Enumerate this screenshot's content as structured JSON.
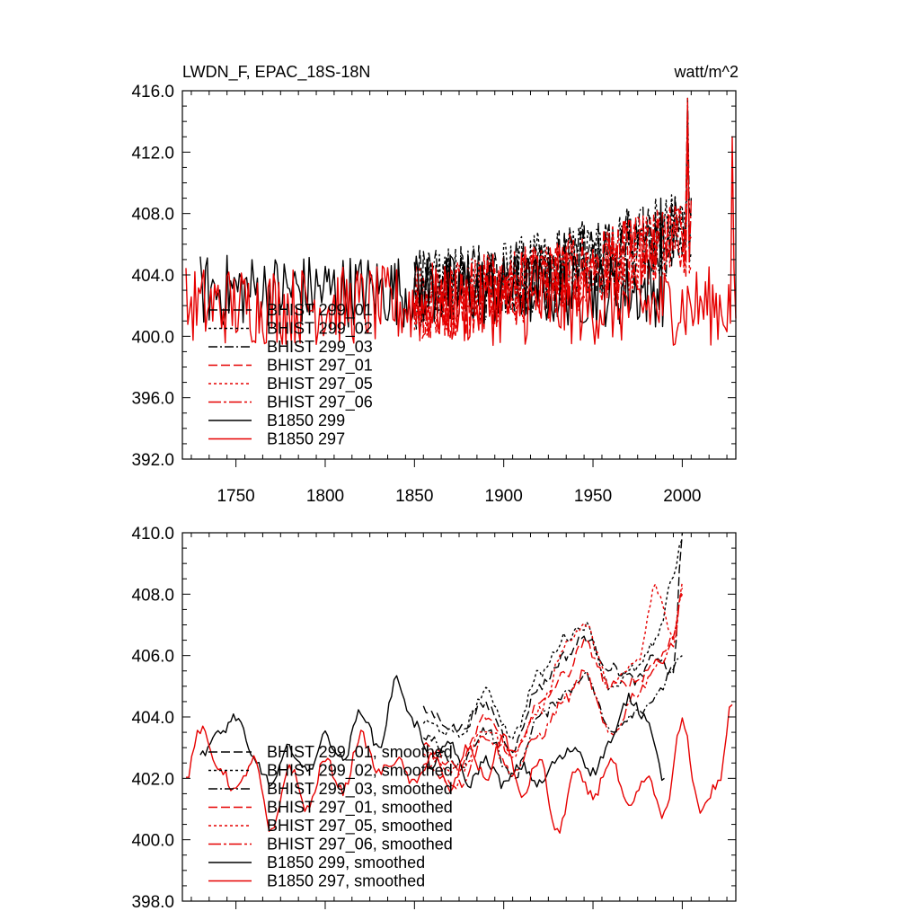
{
  "chart_data": [
    {
      "type": "line",
      "title": "LWDN_F, EPAC_18S-18N",
      "units": "watt/m^2",
      "xlabel": "",
      "ylabel": "",
      "xlim": [
        1720,
        2030
      ],
      "ylim": [
        392.0,
        416.0
      ],
      "x_ticks": [
        1750,
        1800,
        1850,
        1900,
        1950,
        2000
      ],
      "y_ticks": [
        "392.0",
        "396.0",
        "400.0",
        "404.0",
        "408.0",
        "412.0",
        "416.0"
      ],
      "legend": [
        "BHIST 299_01",
        "BHIST 299_02",
        "BHIST 299_03",
        "BHIST 297_01",
        "BHIST 297_05",
        "BHIST 297_06",
        "B1850 299",
        "B1850 297"
      ],
      "legend_position": "lower-left",
      "series": [
        {
          "name": "BHIST 299_01",
          "color": "#000000",
          "style": "dash",
          "x_range": [
            1850,
            2005
          ],
          "mean": 403.0,
          "trend": 4.0,
          "amplitude": 2.6,
          "peak": 415.0
        },
        {
          "name": "BHIST 299_02",
          "color": "#000000",
          "style": "dot",
          "x_range": [
            1850,
            2005
          ],
          "mean": 403.0,
          "trend": 4.2,
          "amplitude": 2.6,
          "peak": 414.5
        },
        {
          "name": "BHIST 299_03",
          "color": "#000000",
          "style": "dashdot",
          "x_range": [
            1850,
            2005
          ],
          "mean": 403.0,
          "trend": 4.0,
          "amplitude": 2.6,
          "peak": 415.5
        },
        {
          "name": "BHIST 297_01",
          "color": "#e60000",
          "style": "dash",
          "x_range": [
            1850,
            2005
          ],
          "mean": 402.3,
          "trend": 4.2,
          "amplitude": 2.6,
          "peak": 415.0
        },
        {
          "name": "BHIST 297_05",
          "color": "#e60000",
          "style": "dot",
          "x_range": [
            1850,
            2005
          ],
          "mean": 402.3,
          "trend": 4.4,
          "amplitude": 2.6,
          "peak": 415.5
        },
        {
          "name": "BHIST 297_06",
          "color": "#e60000",
          "style": "dashdot2",
          "x_range": [
            1850,
            2005
          ],
          "mean": 402.3,
          "trend": 4.1,
          "amplitude": 2.6,
          "peak": 414.0
        },
        {
          "name": "B1850 299",
          "color": "#000000",
          "style": "solid",
          "x_range": [
            1730,
            1990
          ],
          "mean": 403.0,
          "trend": 0.0,
          "amplitude": 2.4,
          "peak": 409.0
        },
        {
          "name": "B1850 297",
          "color": "#e60000",
          "style": "solid",
          "x_range": [
            1722,
            2030
          ],
          "mean": 402.0,
          "trend": 0.0,
          "amplitude": 2.6,
          "peak": 413.0
        }
      ]
    },
    {
      "type": "line",
      "title": "",
      "xlabel": "",
      "ylabel": "",
      "xlim": [
        1720,
        2030
      ],
      "ylim": [
        398.0,
        410.0
      ],
      "y_ticks": [
        "398.0",
        "400.0",
        "402.0",
        "404.0",
        "406.0",
        "408.0",
        "410.0"
      ],
      "legend": [
        "BHIST 299_01, smoothed",
        "BHIST 299_02, smoothed",
        "BHIST 299_03, smoothed",
        "BHIST 297_01, smoothed",
        "BHIST 297_05, smoothed",
        "BHIST 297_06, smoothed",
        "B1850 299, smoothed",
        "B1850 297, smoothed"
      ],
      "legend_position": "lower-left",
      "series": [
        {
          "name": "BHIST 299_01, smoothed",
          "color": "#000000",
          "style": "dash",
          "x": [
            1855,
            1875,
            1890,
            1905,
            1920,
            1935,
            1945,
            1960,
            1975,
            1985,
            1995,
            2000
          ],
          "y": [
            404.2,
            403.6,
            404.4,
            403.0,
            405.0,
            406.0,
            406.6,
            405.6,
            405.2,
            406.0,
            405.4,
            410.0
          ]
        },
        {
          "name": "BHIST 299_02, smoothed",
          "color": "#000000",
          "style": "dot",
          "x": [
            1855,
            1875,
            1890,
            1905,
            1920,
            1935,
            1945,
            1960,
            1975,
            1985,
            1995,
            2000
          ],
          "y": [
            403.8,
            403.4,
            404.8,
            403.4,
            405.4,
            406.6,
            407.0,
            405.0,
            405.6,
            406.4,
            408.6,
            409.8
          ]
        },
        {
          "name": "BHIST 299_03, smoothed",
          "color": "#000000",
          "style": "dashdot",
          "x": [
            1855,
            1875,
            1890,
            1905,
            1920,
            1935,
            1945,
            1960,
            1975,
            1985,
            1995,
            2000
          ],
          "y": [
            403.4,
            402.4,
            403.6,
            402.0,
            404.0,
            404.8,
            405.4,
            403.6,
            404.2,
            404.6,
            405.6,
            406.0
          ]
        },
        {
          "name": "BHIST 297_01, smoothed",
          "color": "#e60000",
          "style": "dash",
          "x": [
            1855,
            1875,
            1890,
            1905,
            1920,
            1935,
            1945,
            1960,
            1975,
            1985,
            1995,
            2000
          ],
          "y": [
            403.0,
            402.4,
            404.0,
            402.8,
            404.4,
            405.4,
            406.4,
            405.0,
            405.2,
            405.8,
            406.6,
            408.2
          ]
        },
        {
          "name": "BHIST 297_05, smoothed",
          "color": "#e60000",
          "style": "dot",
          "x": [
            1855,
            1875,
            1890,
            1905,
            1920,
            1935,
            1945,
            1960,
            1975,
            1985,
            1995,
            2000
          ],
          "y": [
            402.8,
            402.2,
            403.6,
            402.8,
            404.2,
            406.4,
            407.0,
            405.0,
            405.8,
            408.2,
            406.6,
            408.4
          ]
        },
        {
          "name": "BHIST 297_06, smoothed",
          "color": "#e60000",
          "style": "dashdot2",
          "x": [
            1855,
            1875,
            1890,
            1905,
            1920,
            1935,
            1945,
            1960,
            1975,
            1985,
            1995,
            2000
          ],
          "y": [
            402.4,
            401.8,
            403.4,
            402.2,
            403.4,
            404.6,
            405.4,
            403.4,
            404.8,
            405.6,
            406.4,
            408.0
          ]
        },
        {
          "name": "B1850 299, smoothed",
          "color": "#000000",
          "style": "solid",
          "x": [
            1730,
            1740,
            1750,
            1760,
            1770,
            1780,
            1790,
            1800,
            1810,
            1820,
            1830,
            1840,
            1850,
            1860,
            1870,
            1880,
            1890,
            1900,
            1910,
            1920,
            1930,
            1940,
            1950,
            1960,
            1970,
            1980,
            1990
          ],
          "y": [
            402.8,
            403.4,
            404.0,
            402.6,
            401.8,
            403.0,
            402.2,
            403.4,
            402.6,
            404.2,
            403.0,
            405.2,
            403.8,
            402.4,
            403.2,
            401.8,
            402.6,
            401.8,
            402.4,
            401.8,
            402.6,
            403.0,
            402.2,
            403.2,
            404.6,
            404.0,
            402.0
          ]
        },
        {
          "name": "B1850 297, smoothed",
          "color": "#e60000",
          "style": "solid",
          "x": [
            1722,
            1730,
            1740,
            1750,
            1760,
            1770,
            1780,
            1790,
            1800,
            1810,
            1820,
            1830,
            1840,
            1850,
            1860,
            1870,
            1880,
            1890,
            1900,
            1910,
            1920,
            1930,
            1940,
            1950,
            1960,
            1970,
            1980,
            1990,
            2000,
            2010,
            2020,
            2028
          ],
          "y": [
            402.0,
            403.6,
            402.4,
            401.6,
            402.6,
            400.2,
            402.4,
            401.0,
            402.6,
            401.6,
            403.4,
            402.2,
            402.6,
            401.8,
            402.8,
            401.6,
            403.0,
            402.0,
            403.4,
            401.4,
            402.6,
            400.2,
            402.2,
            401.4,
            402.6,
            401.0,
            402.0,
            400.8,
            403.8,
            401.0,
            401.8,
            404.4
          ]
        }
      ]
    }
  ]
}
